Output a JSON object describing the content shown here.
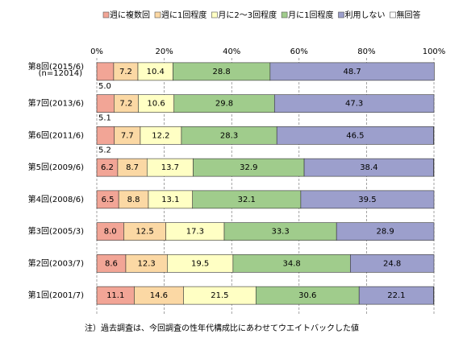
{
  "chart_data": {
    "type": "stacked-bar-horizontal",
    "categories": [
      "第8回(2015/6)",
      "第7回(2013/6)",
      "第6回(2011/6)",
      "第5回(2009/6)",
      "第4回(2008/6)",
      "第3回(2005/3)",
      "第2回(2003/7)",
      "第1回(2001/7)"
    ],
    "category_note": "(n=12014)",
    "series": [
      {
        "name": "週に複数回",
        "color": "#f2a596",
        "values": [
          5.0,
          5.1,
          5.2,
          6.2,
          6.5,
          8.0,
          8.6,
          11.1
        ],
        "value_labels": [
          "5.0",
          "5.1",
          "5.2",
          "6.2",
          "6.5",
          "8.0",
          "8.6",
          "11.1"
        ]
      },
      {
        "name": "週に1回程度",
        "color": "#fbd8a4",
        "values": [
          7.2,
          7.2,
          7.7,
          8.7,
          8.8,
          12.5,
          12.3,
          14.6
        ],
        "value_labels": [
          "7.2",
          "7.2",
          "7.7",
          "8.7",
          "8.8",
          "12.5",
          "12.3",
          "14.6"
        ]
      },
      {
        "name": "月に2〜3回程度",
        "color": "#ffffc4",
        "values": [
          10.4,
          10.6,
          12.2,
          13.7,
          13.1,
          17.3,
          19.5,
          21.5
        ],
        "value_labels": [
          "10.4",
          "10.6",
          "12.2",
          "13.7",
          "13.1",
          "17.3",
          "19.5",
          "21.5"
        ]
      },
      {
        "name": "月に1回程度",
        "color": "#a0cc8c",
        "values": [
          28.8,
          29.8,
          28.3,
          32.9,
          32.1,
          33.3,
          34.8,
          30.6
        ],
        "value_labels": [
          "28.8",
          "29.8",
          "28.3",
          "32.9",
          "32.1",
          "33.3",
          "34.8",
          "30.6"
        ]
      },
      {
        "name": "利用しない",
        "color": "#9c9fcc",
        "values": [
          48.7,
          47.3,
          46.5,
          38.4,
          39.5,
          28.9,
          24.8,
          22.1
        ],
        "value_labels": [
          "48.7",
          "47.3",
          "46.5",
          "38.4",
          "39.5",
          "28.9",
          "24.8",
          "22.1"
        ]
      },
      {
        "name": "無回答",
        "color": "#ffffff",
        "values": [
          0,
          0,
          0.1,
          0.1,
          0,
          0,
          0,
          0.1
        ]
      }
    ],
    "xlim": [
      0,
      100
    ],
    "xticks": [
      {
        "value": 0,
        "label": "0%"
      },
      {
        "value": 20,
        "label": "20%"
      },
      {
        "value": 40,
        "label": "40%"
      },
      {
        "value": 60,
        "label": "60%"
      },
      {
        "value": 80,
        "label": "80%"
      },
      {
        "value": 100,
        "label": "100%"
      }
    ],
    "grid": true,
    "footnote": "注）過去調査は、今回調査の性年代構成比にあわせてウエイトバックした値"
  }
}
